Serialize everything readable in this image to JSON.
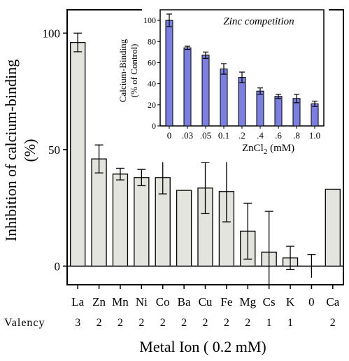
{
  "chart_data": [
    {
      "type": "bar",
      "ylabel_line1": "Inhibition of calcium-binding",
      "ylabel_line2": "(%)",
      "xlabel": "Metal Ion ( 0.2 mM)",
      "valency_label": "Valency",
      "ylim": [
        -8,
        110
      ],
      "yticks": [
        "0",
        "50",
        "100"
      ],
      "ytick_values": [
        0,
        50,
        100
      ],
      "categories": [
        "La",
        "Zn",
        "Mn",
        "Ni",
        "Co",
        "Ba",
        "Cu",
        "Fe",
        "Mg",
        "Cs",
        "K",
        "0",
        "Ca"
      ],
      "valency": [
        "3",
        "2",
        "2",
        "2",
        "2",
        "2",
        "2",
        "2",
        "2",
        "1",
        "1",
        "",
        "2"
      ],
      "values": [
        96,
        46,
        39.5,
        38,
        38,
        32.5,
        33.5,
        32,
        15,
        6,
        3.5,
        null,
        33
      ],
      "errors": [
        4,
        6,
        2.5,
        3.5,
        7,
        null,
        11,
        13,
        12,
        17.5,
        5,
        5,
        null
      ],
      "bar_color": "#e3e4de"
    },
    {
      "type": "bar",
      "title": "Zinc competition",
      "ylabel_line1": "Calcium-Binding",
      "ylabel_line2": "(% of Control)",
      "xlabel_main": "ZnCl",
      "xlabel_sub": "2",
      "xlabel_unit": " (mM)",
      "ylim": [
        0,
        110
      ],
      "yticks": [
        "0",
        "20",
        "40",
        "60",
        "80",
        "100"
      ],
      "ytick_values": [
        0,
        20,
        40,
        60,
        80,
        100
      ],
      "categories": [
        "0",
        ".03",
        ".05",
        "0.1",
        ".2",
        ".4",
        ".6",
        ".8",
        "1.0"
      ],
      "values": [
        100,
        74,
        67,
        54,
        46,
        33,
        28,
        26,
        21
      ],
      "errors": [
        6,
        1.5,
        3,
        5,
        5,
        3,
        2,
        4,
        2.5
      ],
      "bar_color": "#7b7fe0"
    }
  ]
}
